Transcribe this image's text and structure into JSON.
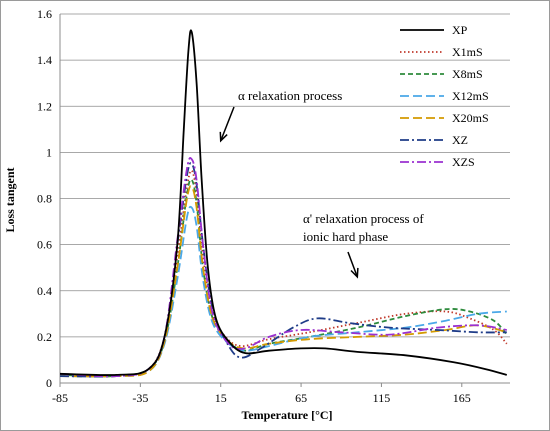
{
  "chart_data": {
    "type": "line",
    "title": "",
    "xlabel": "Temperature [°C]",
    "ylabel": "Loss tangent",
    "xlim": [
      -85,
      195
    ],
    "ylim": [
      0,
      1.6
    ],
    "xticks": [
      "-85",
      "-35",
      "15",
      "65",
      "115",
      "165"
    ],
    "yticks": [
      "0",
      "0.2",
      "0.4",
      "0.6",
      "0.8",
      "1",
      "1.2",
      "1.4",
      "1.6"
    ],
    "grid": "horizontal",
    "legend_position": "top-right",
    "annotations": [
      {
        "text": "α relaxation process",
        "arrow_to": [
          15,
          1.05
        ]
      },
      {
        "text": "α' relaxation process of",
        "arrow_to": [
          100,
          0.46
        ]
      },
      {
        "text": "ionic hard phase",
        "arrow_to": null
      }
    ],
    "series": [
      {
        "name": "XP",
        "color": "#000000",
        "dash": "solid",
        "points": [
          [
            -85,
            0.04
          ],
          [
            -50,
            0.035
          ],
          [
            -30,
            0.06
          ],
          [
            -20,
            0.2
          ],
          [
            -12,
            0.6
          ],
          [
            -8,
            1.1
          ],
          [
            -5,
            1.45
          ],
          [
            -3,
            1.52
          ],
          [
            0,
            1.3
          ],
          [
            3,
            0.9
          ],
          [
            7,
            0.5
          ],
          [
            12,
            0.28
          ],
          [
            20,
            0.18
          ],
          [
            30,
            0.13
          ],
          [
            45,
            0.14
          ],
          [
            65,
            0.15
          ],
          [
            80,
            0.15
          ],
          [
            100,
            0.135
          ],
          [
            130,
            0.12
          ],
          [
            160,
            0.09
          ],
          [
            180,
            0.06
          ],
          [
            193,
            0.035
          ]
        ]
      },
      {
        "name": "X1mS",
        "color": "#c0392b",
        "dash": "dot",
        "points": [
          [
            -85,
            0.035
          ],
          [
            -50,
            0.03
          ],
          [
            -30,
            0.06
          ],
          [
            -20,
            0.2
          ],
          [
            -12,
            0.55
          ],
          [
            -6,
            0.85
          ],
          [
            -3,
            0.92
          ],
          [
            0,
            0.82
          ],
          [
            4,
            0.55
          ],
          [
            10,
            0.3
          ],
          [
            18,
            0.2
          ],
          [
            28,
            0.16
          ],
          [
            45,
            0.19
          ],
          [
            70,
            0.22
          ],
          [
            100,
            0.26
          ],
          [
            130,
            0.3
          ],
          [
            155,
            0.31
          ],
          [
            170,
            0.28
          ],
          [
            185,
            0.23
          ],
          [
            193,
            0.17
          ]
        ]
      },
      {
        "name": "X8mS",
        "color": "#2e8b3d",
        "dash": "dash",
        "points": [
          [
            -85,
            0.035
          ],
          [
            -50,
            0.03
          ],
          [
            -30,
            0.06
          ],
          [
            -20,
            0.18
          ],
          [
            -12,
            0.5
          ],
          [
            -6,
            0.82
          ],
          [
            -3,
            0.88
          ],
          [
            0,
            0.78
          ],
          [
            4,
            0.5
          ],
          [
            10,
            0.28
          ],
          [
            20,
            0.18
          ],
          [
            30,
            0.14
          ],
          [
            45,
            0.17
          ],
          [
            70,
            0.2
          ],
          [
            100,
            0.24
          ],
          [
            130,
            0.29
          ],
          [
            155,
            0.32
          ],
          [
            170,
            0.31
          ],
          [
            185,
            0.27
          ],
          [
            193,
            0.21
          ]
        ]
      },
      {
        "name": "X12mS",
        "color": "#4aa8e8",
        "dash": "longdash",
        "points": [
          [
            -85,
            0.03
          ],
          [
            -50,
            0.03
          ],
          [
            -30,
            0.05
          ],
          [
            -20,
            0.17
          ],
          [
            -12,
            0.45
          ],
          [
            -6,
            0.72
          ],
          [
            -3,
            0.76
          ],
          [
            0,
            0.68
          ],
          [
            4,
            0.45
          ],
          [
            10,
            0.26
          ],
          [
            20,
            0.17
          ],
          [
            30,
            0.14
          ],
          [
            45,
            0.16
          ],
          [
            70,
            0.2
          ],
          [
            100,
            0.22
          ],
          [
            130,
            0.24
          ],
          [
            155,
            0.27
          ],
          [
            175,
            0.3
          ],
          [
            193,
            0.31
          ]
        ]
      },
      {
        "name": "X20mS",
        "color": "#d49a00",
        "dash": "longdash",
        "points": [
          [
            -85,
            0.03
          ],
          [
            -50,
            0.03
          ],
          [
            -30,
            0.05
          ],
          [
            -20,
            0.18
          ],
          [
            -12,
            0.5
          ],
          [
            -6,
            0.8
          ],
          [
            -3,
            0.85
          ],
          [
            0,
            0.76
          ],
          [
            4,
            0.5
          ],
          [
            10,
            0.28
          ],
          [
            20,
            0.18
          ],
          [
            30,
            0.15
          ],
          [
            45,
            0.17
          ],
          [
            70,
            0.19
          ],
          [
            100,
            0.2
          ],
          [
            130,
            0.21
          ],
          [
            155,
            0.23
          ],
          [
            175,
            0.25
          ],
          [
            193,
            0.22
          ]
        ]
      },
      {
        "name": "XZ",
        "color": "#1f3c88",
        "dash": "dashdot",
        "points": [
          [
            -85,
            0.03
          ],
          [
            -50,
            0.03
          ],
          [
            -30,
            0.06
          ],
          [
            -20,
            0.2
          ],
          [
            -12,
            0.6
          ],
          [
            -6,
            0.9
          ],
          [
            -3,
            0.95
          ],
          [
            0,
            0.86
          ],
          [
            4,
            0.6
          ],
          [
            10,
            0.32
          ],
          [
            20,
            0.16
          ],
          [
            28,
            0.11
          ],
          [
            40,
            0.15
          ],
          [
            60,
            0.24
          ],
          [
            75,
            0.28
          ],
          [
            95,
            0.26
          ],
          [
            120,
            0.24
          ],
          [
            150,
            0.23
          ],
          [
            175,
            0.22
          ],
          [
            193,
            0.22
          ]
        ]
      },
      {
        "name": "XZS",
        "color": "#9b30d0",
        "dash": "dashdot",
        "points": [
          [
            -85,
            0.04
          ],
          [
            -50,
            0.03
          ],
          [
            -30,
            0.06
          ],
          [
            -20,
            0.2
          ],
          [
            -12,
            0.62
          ],
          [
            -6,
            0.93
          ],
          [
            -3,
            0.97
          ],
          [
            0,
            0.88
          ],
          [
            4,
            0.6
          ],
          [
            10,
            0.3
          ],
          [
            20,
            0.17
          ],
          [
            30,
            0.15
          ],
          [
            45,
            0.2
          ],
          [
            65,
            0.23
          ],
          [
            90,
            0.22
          ],
          [
            120,
            0.21
          ],
          [
            150,
            0.24
          ],
          [
            175,
            0.25
          ],
          [
            193,
            0.23
          ]
        ]
      }
    ]
  }
}
